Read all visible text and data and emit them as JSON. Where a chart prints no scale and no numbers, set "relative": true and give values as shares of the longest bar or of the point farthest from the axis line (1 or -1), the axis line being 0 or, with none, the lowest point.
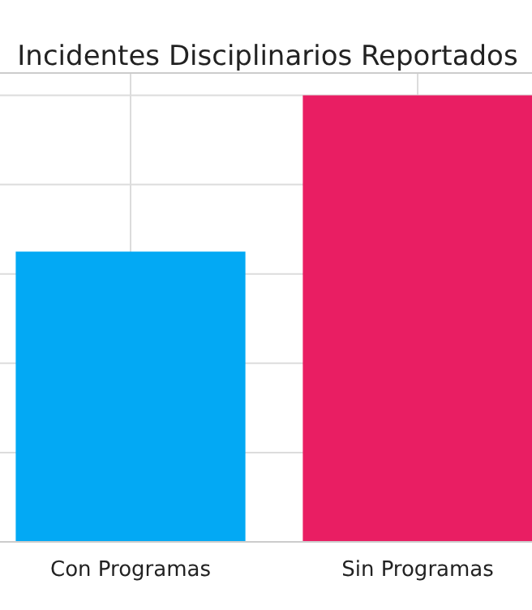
{
  "chart_data": {
    "type": "bar",
    "title": "Incidentes Disciplinarios Reportados",
    "categories": [
      "Con Programas",
      "Sin Programas"
    ],
    "values": [
      0.65,
      1
    ],
    "colors": [
      "#03a9f4",
      "#e91e63"
    ],
    "relative": true,
    "grid": true
  }
}
